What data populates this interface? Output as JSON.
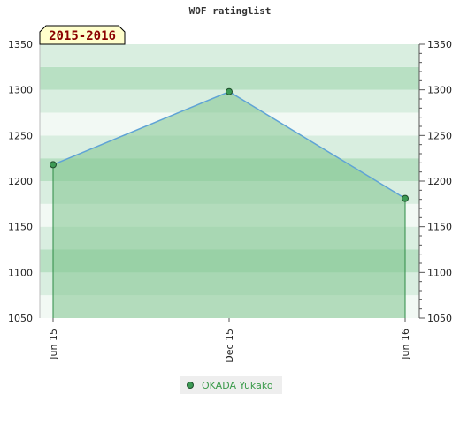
{
  "chart_data": {
    "type": "area",
    "title": "WOF ratinglist",
    "period_label": "2015-2016",
    "x": [
      "Jun 15",
      "Dec 15",
      "Jun 16"
    ],
    "series": [
      {
        "name": "OKADA Yukako",
        "values": [
          1218,
          1298,
          1181
        ]
      }
    ],
    "ylim": [
      1050,
      1350
    ],
    "yticks": [
      1050,
      1100,
      1150,
      1200,
      1250,
      1300,
      1350
    ],
    "ytick_labels": [
      "1050",
      "1100",
      "1150",
      "1200",
      "1250",
      "1300",
      "1350"
    ],
    "xlabel": "",
    "ylabel": "",
    "grid": true,
    "legend": "bottom-center",
    "colors": {
      "line": "#5fa3d6",
      "fill": "#7fc48e",
      "marker": "#3d9a55",
      "drop_line": "#2e8b46",
      "band_light": "#d9eee0",
      "band_mid": "#b8e0c3",
      "band_white": "#f2f9f4",
      "period_bg": "#ffffcc"
    }
  }
}
